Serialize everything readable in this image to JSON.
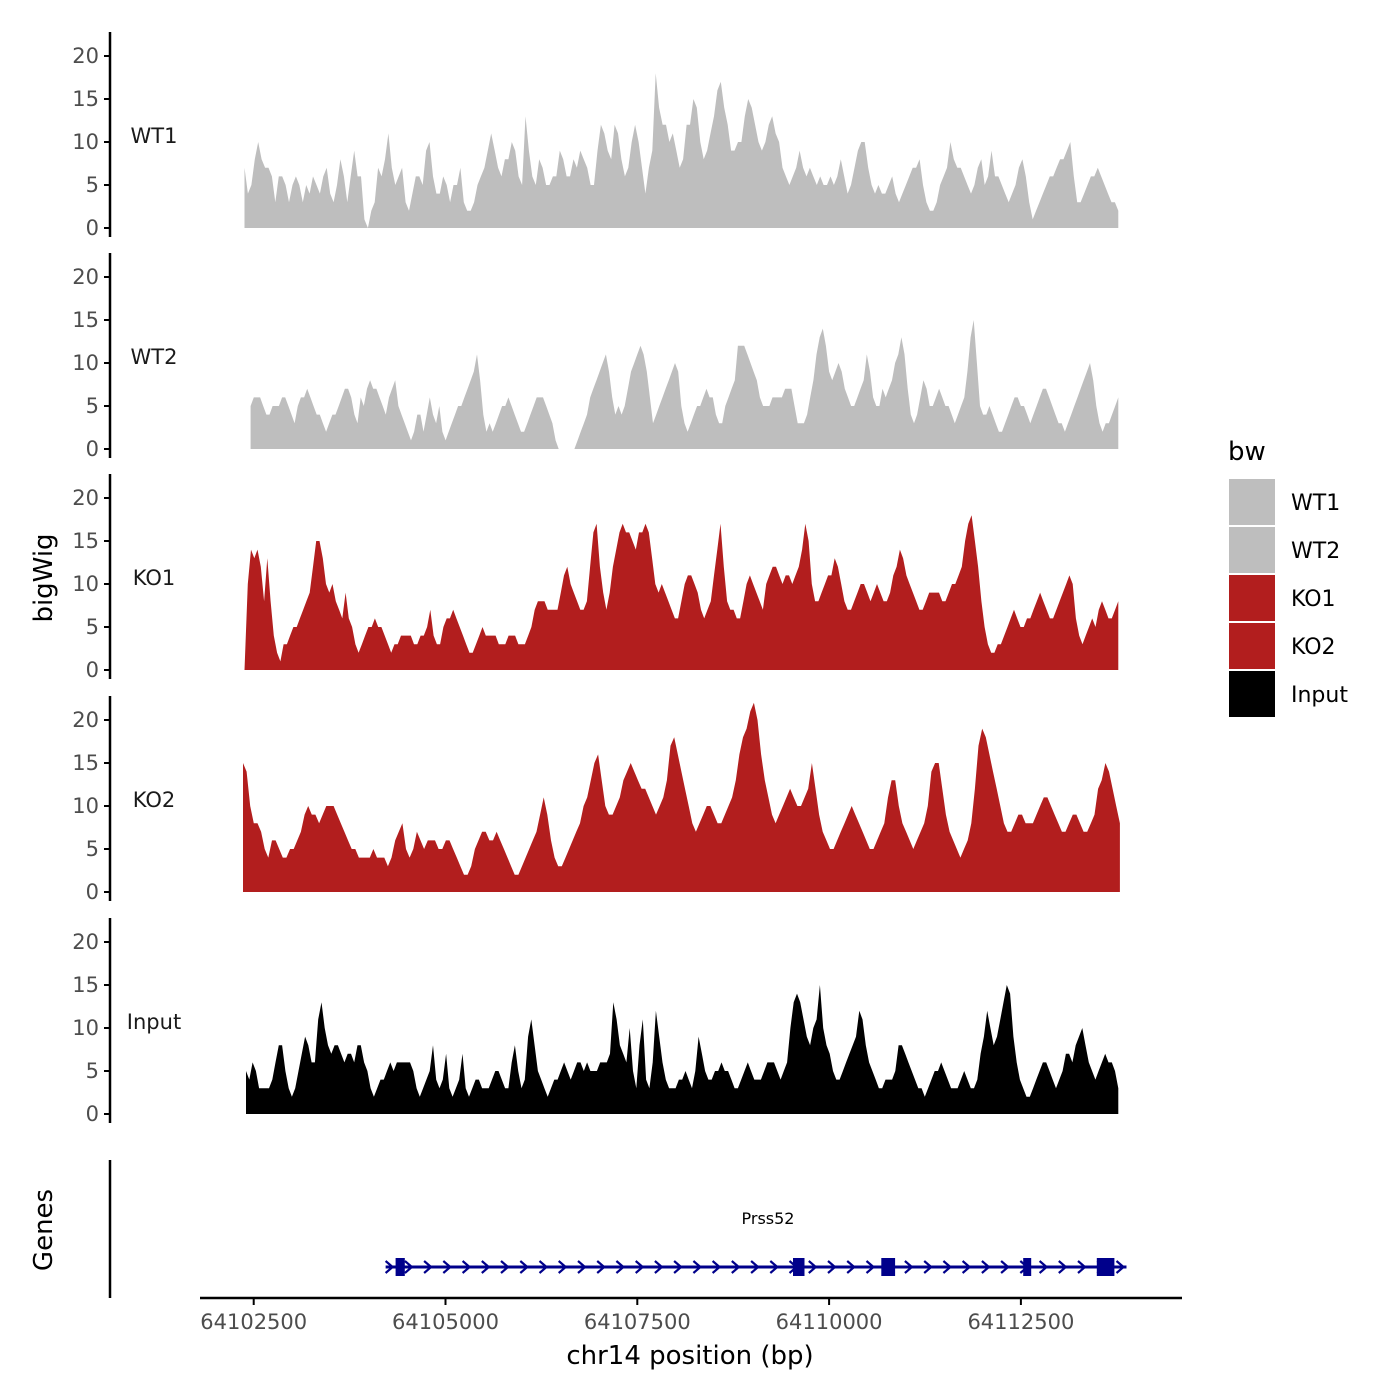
{
  "chart_data": {
    "type": "area",
    "ylabel": "bigWig",
    "xlabel": "chr14 position (bp)",
    "ylim": [
      0,
      22
    ],
    "yticks": [
      0,
      5,
      10,
      15,
      20
    ],
    "xlim": [
      64101800,
      64114600
    ],
    "xticks": [
      64102500,
      64105000,
      64107500,
      64110000,
      64112500
    ],
    "xticklabels": [
      "64102500",
      "64105000",
      "64107500",
      "64110000",
      "64112500"
    ],
    "legend": {
      "title": "bw",
      "position": "right",
      "entries": [
        {
          "label": "WT1",
          "color": "#bebebe"
        },
        {
          "label": "WT2",
          "color": "#bebebe"
        },
        {
          "label": "KO1",
          "color": "#b21e1e"
        },
        {
          "label": "KO2",
          "color": "#b21e1e"
        },
        {
          "label": "Input",
          "color": "#000000"
        }
      ]
    },
    "series": [
      {
        "name": "WT1",
        "color": "#bebebe",
        "start": 64102380,
        "end": 64113770,
        "values": [
          7,
          4,
          5,
          8,
          10,
          8,
          7,
          7,
          6,
          3,
          6,
          6,
          5,
          3,
          5,
          6,
          5,
          3,
          5,
          4,
          6,
          5,
          4,
          6,
          7,
          4,
          3,
          5,
          8,
          6,
          3,
          6,
          9,
          6,
          6,
          1,
          0,
          2,
          3,
          7,
          6,
          8,
          11,
          7,
          5,
          6,
          7,
          3,
          2,
          4,
          6,
          6,
          5,
          9,
          10,
          6,
          4,
          4,
          6,
          5,
          3,
          5,
          5,
          7,
          3,
          2,
          2,
          3,
          5,
          6,
          7,
          9,
          11,
          9,
          7,
          6,
          8,
          8,
          10,
          9,
          6,
          5,
          13,
          9,
          6,
          5,
          8,
          7,
          5,
          5,
          6,
          6,
          9,
          8,
          6,
          6,
          8,
          7,
          9,
          8,
          7,
          5,
          5,
          9,
          12,
          11,
          9,
          8,
          12,
          11,
          8,
          6,
          7,
          10,
          12,
          10,
          7,
          4,
          7,
          9,
          18,
          14,
          12,
          12,
          10,
          11,
          9,
          7,
          8,
          12,
          12,
          15,
          14,
          10,
          8,
          9,
          11,
          13,
          16,
          17,
          14,
          12,
          9,
          9,
          10,
          10,
          13,
          15,
          14,
          12,
          10,
          9,
          10,
          12,
          13,
          11,
          10,
          7,
          6,
          5,
          6,
          7,
          9,
          7,
          6,
          7,
          6,
          5,
          6,
          5,
          5,
          6,
          5,
          6,
          8,
          6,
          4,
          5,
          7,
          9,
          10,
          10,
          7,
          5,
          4,
          5,
          4,
          4,
          5,
          6,
          4,
          3,
          4,
          5,
          6,
          7,
          7,
          8,
          5,
          3,
          2,
          2,
          3,
          5,
          6,
          7,
          10,
          8,
          7,
          7,
          6,
          5,
          4,
          5,
          7,
          8,
          5,
          6,
          9,
          6,
          6,
          5,
          4,
          3,
          4,
          5,
          7,
          8,
          6,
          3,
          1,
          2,
          3,
          4,
          5,
          6,
          6,
          7,
          8,
          8,
          9,
          10,
          6,
          3,
          3,
          4,
          5,
          6,
          6,
          7,
          6,
          5,
          4,
          3,
          3,
          2
        ]
      },
      {
        "name": "WT2",
        "color": "#bebebe",
        "start": 64102460,
        "end": 64113770,
        "values": [
          5,
          6,
          6,
          6,
          5,
          4,
          4,
          5,
          5,
          5,
          6,
          6,
          5,
          4,
          3,
          5,
          6,
          6,
          7,
          6,
          5,
          4,
          4,
          3,
          2,
          3,
          4,
          4,
          5,
          6,
          7,
          7,
          6,
          4,
          3,
          6,
          5,
          7,
          8,
          7,
          7,
          6,
          5,
          4,
          6,
          7,
          8,
          5,
          4,
          3,
          2,
          1,
          2,
          4,
          4,
          2,
          4,
          6,
          4,
          3,
          5,
          2,
          1,
          2,
          3,
          4,
          5,
          5,
          6,
          7,
          8,
          9,
          11,
          8,
          4,
          2,
          3,
          2,
          3,
          4,
          5,
          5,
          6,
          5,
          4,
          3,
          2,
          2,
          3,
          4,
          5,
          6,
          6,
          6,
          5,
          4,
          3,
          1,
          0,
          0,
          0,
          0,
          0,
          0,
          1,
          2,
          3,
          4,
          6,
          7,
          8,
          9,
          10,
          11,
          9,
          6,
          4,
          5,
          4,
          5,
          7,
          9,
          10,
          11,
          12,
          11,
          9,
          6,
          3,
          4,
          5,
          6,
          7,
          8,
          9,
          10,
          9,
          5,
          3,
          2,
          3,
          4,
          5,
          5,
          6,
          7,
          6,
          6,
          4,
          3,
          3,
          5,
          6,
          7,
          8,
          12,
          12,
          12,
          11,
          10,
          9,
          8,
          6,
          5,
          5,
          5,
          6,
          6,
          6,
          6,
          7,
          7,
          7,
          5,
          3,
          3,
          3,
          4,
          6,
          8,
          11,
          13,
          14,
          12,
          9,
          8,
          9,
          10,
          9,
          7,
          6,
          5,
          5,
          6,
          7,
          8,
          11,
          9,
          6,
          5,
          5,
          7,
          6,
          7,
          8,
          10,
          11,
          13,
          11,
          7,
          4,
          3,
          4,
          6,
          8,
          7,
          5,
          5,
          6,
          7,
          6,
          5,
          5,
          4,
          3,
          4,
          5,
          6,
          9,
          13,
          15,
          10,
          5,
          4,
          4,
          5,
          4,
          3,
          2,
          2,
          3,
          4,
          5,
          6,
          6,
          5,
          5,
          4,
          3,
          4,
          5,
          6,
          7,
          7,
          6,
          5,
          4,
          3,
          3,
          2,
          3,
          4,
          5,
          6,
          7,
          8,
          9,
          10,
          8,
          5,
          3,
          2,
          3,
          3,
          4,
          5,
          6
        ]
      },
      {
        "name": "KO1",
        "color": "#b21e1e",
        "start": 64102380,
        "end": 64113770,
        "values": [
          0,
          10,
          14,
          13,
          14,
          12,
          8,
          13,
          8,
          4,
          2,
          1,
          3,
          3,
          4,
          5,
          5,
          6,
          7,
          8,
          9,
          12,
          15,
          15,
          13,
          10,
          9,
          10,
          8,
          7,
          6,
          9,
          6,
          5,
          3,
          2,
          3,
          4,
          5,
          5,
          6,
          5,
          5,
          4,
          3,
          2,
          3,
          3,
          4,
          4,
          4,
          4,
          3,
          3,
          4,
          4,
          5,
          7,
          4,
          3,
          3,
          5,
          6,
          6,
          7,
          6,
          5,
          4,
          3,
          2,
          2,
          3,
          4,
          5,
          4,
          4,
          4,
          4,
          3,
          3,
          3,
          4,
          4,
          4,
          3,
          3,
          3,
          4,
          5,
          7,
          8,
          8,
          8,
          7,
          7,
          7,
          7,
          9,
          11,
          12,
          10,
          9,
          8,
          7,
          7,
          8,
          12,
          16,
          17,
          12,
          9,
          7,
          9,
          12,
          14,
          16,
          17,
          16,
          16,
          15,
          14,
          16,
          16,
          17,
          16,
          13,
          10,
          9,
          10,
          9,
          8,
          7,
          6,
          6,
          8,
          10,
          11,
          11,
          10,
          9,
          7,
          6,
          7,
          8,
          11,
          14,
          17,
          12,
          8,
          7,
          7,
          6,
          6,
          8,
          10,
          11,
          10,
          9,
          8,
          7,
          10,
          11,
          12,
          12,
          11,
          10,
          11,
          11,
          10,
          11,
          12,
          14,
          17,
          15,
          10,
          8,
          8,
          9,
          10,
          11,
          11,
          13,
          12,
          10,
          8,
          7,
          7,
          8,
          9,
          10,
          10,
          9,
          8,
          9,
          10,
          9,
          8,
          8,
          9,
          11,
          12,
          14,
          13,
          11,
          10,
          9,
          8,
          7,
          7,
          8,
          9,
          9,
          9,
          9,
          8,
          8,
          9,
          10,
          10,
          11,
          12,
          15,
          17,
          18,
          15,
          12,
          8,
          5,
          3,
          2,
          2,
          3,
          3,
          4,
          5,
          6,
          7,
          6,
          5,
          5,
          6,
          6,
          7,
          8,
          9,
          8,
          7,
          6,
          6,
          7,
          8,
          9,
          10,
          11,
          10,
          6,
          4,
          3,
          4,
          5,
          6,
          5,
          7,
          8,
          7,
          6,
          6,
          7,
          8
        ]
      },
      {
        "name": "KO2",
        "color": "#b21e1e",
        "start": 64102360,
        "end": 64113790,
        "values": [
          15,
          14,
          10,
          8,
          8,
          7,
          5,
          4,
          6,
          6,
          5,
          4,
          4,
          5,
          5,
          6,
          7,
          9,
          10,
          9,
          9,
          8,
          9,
          10,
          10,
          10,
          9,
          8,
          7,
          6,
          5,
          5,
          4,
          4,
          4,
          4,
          5,
          4,
          4,
          4,
          3,
          4,
          6,
          7,
          8,
          5,
          4,
          5,
          7,
          6,
          5,
          6,
          6,
          6,
          5,
          5,
          6,
          6,
          5,
          4,
          3,
          2,
          2,
          3,
          5,
          6,
          7,
          7,
          6,
          6,
          7,
          6,
          5,
          4,
          3,
          2,
          2,
          3,
          4,
          5,
          6,
          7,
          9,
          11,
          9,
          6,
          4,
          3,
          3,
          4,
          5,
          6,
          7,
          8,
          10,
          11,
          13,
          15,
          16,
          13,
          10,
          9,
          9,
          10,
          11,
          13,
          14,
          15,
          14,
          13,
          12,
          12,
          11,
          10,
          9,
          10,
          11,
          13,
          17,
          18,
          16,
          14,
          12,
          10,
          8,
          7,
          8,
          9,
          10,
          10,
          9,
          8,
          8,
          9,
          10,
          11,
          13,
          16,
          18,
          19,
          21,
          22,
          20,
          16,
          13,
          11,
          9,
          8,
          9,
          10,
          11,
          12,
          11,
          10,
          10,
          11,
          12,
          15,
          12,
          9,
          7,
          6,
          5,
          5,
          6,
          7,
          8,
          9,
          10,
          9,
          8,
          7,
          6,
          5,
          5,
          6,
          7,
          8,
          11,
          13,
          13,
          10,
          8,
          7,
          6,
          5,
          6,
          7,
          8,
          10,
          14,
          15,
          15,
          12,
          9,
          7,
          6,
          5,
          4,
          5,
          6,
          8,
          12,
          17,
          19,
          18,
          16,
          14,
          12,
          10,
          8,
          7,
          7,
          8,
          9,
          9,
          8,
          8,
          8,
          9,
          10,
          11,
          11,
          10,
          9,
          8,
          7,
          7,
          8,
          9,
          9,
          8,
          7,
          7,
          8,
          9,
          12,
          13,
          15,
          14,
          12,
          10,
          8
        ]
      },
      {
        "name": "Input",
        "color": "#000000",
        "start": 64102400,
        "end": 64113770,
        "values": [
          5,
          4,
          6,
          5,
          3,
          3,
          3,
          3,
          4,
          6,
          8,
          8,
          5,
          3,
          2,
          3,
          5,
          7,
          9,
          8,
          6,
          6,
          11,
          13,
          10,
          8,
          7,
          8,
          8,
          7,
          6,
          7,
          7,
          6,
          8,
          8,
          6,
          5,
          3,
          2,
          3,
          4,
          4,
          5,
          6,
          5,
          6,
          6,
          6,
          6,
          6,
          5,
          3,
          2,
          3,
          4,
          5,
          8,
          4,
          3,
          4,
          7,
          3,
          2,
          3,
          4,
          7,
          3,
          2,
          3,
          4,
          4,
          3,
          3,
          3,
          4,
          5,
          5,
          4,
          3,
          3,
          6,
          8,
          5,
          3,
          4,
          9,
          11,
          8,
          5,
          4,
          3,
          2,
          3,
          4,
          4,
          5,
          6,
          5,
          4,
          5,
          6,
          6,
          5,
          6,
          5,
          5,
          5,
          6,
          6,
          6,
          7,
          13,
          11,
          8,
          7,
          6,
          10,
          5,
          3,
          8,
          11,
          4,
          3,
          6,
          12,
          9,
          6,
          4,
          3,
          3,
          3,
          4,
          4,
          5,
          4,
          3,
          5,
          9,
          7,
          5,
          4,
          4,
          5,
          5,
          6,
          5,
          5,
          4,
          3,
          3,
          4,
          5,
          6,
          5,
          4,
          4,
          4,
          5,
          6,
          6,
          6,
          5,
          4,
          5,
          6,
          10,
          13,
          14,
          13,
          11,
          9,
          8,
          10,
          11,
          15,
          10,
          8,
          7,
          5,
          4,
          4,
          5,
          6,
          7,
          8,
          9,
          12,
          11,
          8,
          6,
          5,
          4,
          3,
          3,
          4,
          4,
          4,
          5,
          8,
          8,
          7,
          6,
          5,
          4,
          3,
          3,
          2,
          3,
          4,
          5,
          5,
          6,
          5,
          4,
          3,
          3,
          3,
          4,
          5,
          4,
          3,
          3,
          4,
          7,
          9,
          12,
          10,
          8,
          9,
          11,
          13,
          15,
          14,
          9,
          6,
          4,
          3,
          2,
          2,
          3,
          4,
          5,
          6,
          6,
          5,
          4,
          3,
          4,
          5,
          7,
          7,
          6,
          8,
          9,
          10,
          8,
          6,
          5,
          4,
          5,
          6,
          7,
          6,
          6,
          5,
          3
        ]
      }
    ],
    "genes": {
      "track_label": "Genes",
      "name": "Prss52",
      "strand": "+",
      "start": 64104350,
      "end": 64113720,
      "exons": [
        [
          64104350,
          64104470
        ],
        [
          64109530,
          64109680
        ],
        [
          64110680,
          64110860
        ],
        [
          64112530,
          64112620
        ],
        [
          64113490,
          64113720
        ]
      ]
    }
  }
}
